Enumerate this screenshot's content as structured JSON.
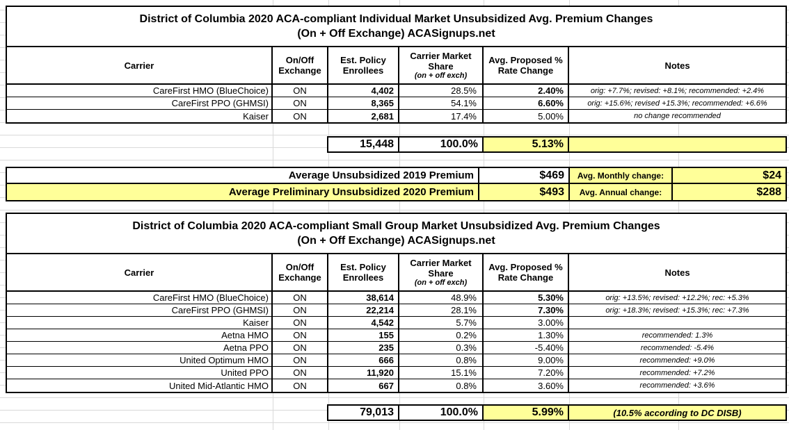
{
  "colors": {
    "highlight_yellow": "#ffff99",
    "border_black": "#000000",
    "grid_gray": "#d9d9d9"
  },
  "individual_table": {
    "title_line1": "District of Columbia 2020 ACA-compliant Individual Market Unsubsidized Avg. Premium Changes",
    "title_line2": "(On + Off Exchange) ACASignups.net",
    "headers": {
      "carrier": "Carrier",
      "exchange": "On/Off Exchange",
      "enrollees": "Est. Policy Enrollees",
      "share": "Carrier Market Share",
      "share_sub": "(on + off exch)",
      "rate": "Avg. Proposed % Rate Change",
      "notes": "Notes"
    },
    "rows": [
      {
        "carrier": "CareFirst HMO (BlueChoice)",
        "exchange": "ON",
        "enrollees": "4,402",
        "share": "28.5%",
        "rate": "2.40%",
        "rate_bold": true,
        "note": "orig: +7.7%; revised: +8.1%; recommended: +2.4%"
      },
      {
        "carrier": "CareFirst PPO (GHMSI)",
        "exchange": "ON",
        "enrollees": "8,365",
        "share": "54.1%",
        "rate": "6.60%",
        "rate_bold": true,
        "note": "orig: +15.6%; revised +15.3%; recommended: +6.6%"
      },
      {
        "carrier": "Kaiser",
        "exchange": "ON",
        "enrollees": "2,681",
        "share": "17.4%",
        "rate": "5.00%",
        "rate_bold": false,
        "note": "no change recommended"
      }
    ],
    "totals": {
      "enrollees": "15,448",
      "share": "100.0%",
      "rate": "5.13%",
      "note": ""
    }
  },
  "summary": {
    "rows": [
      {
        "label": "Average Unsubsidized 2019 Premium",
        "value": "$469",
        "change_label": "Avg. Monthly change:",
        "change_value": "$24",
        "highlight": false
      },
      {
        "label": "Average Preliminary Unsubsidized 2020 Premium",
        "value": "$493",
        "change_label": "Avg. Annual change:",
        "change_value": "$288",
        "highlight": true
      }
    ]
  },
  "small_group_table": {
    "title_line1": "District of Columbia 2020 ACA-compliant Small Group Market Unsubsidized Avg. Premium Changes",
    "title_line2": "(On + Off Exchange) ACASignups.net",
    "headers": {
      "carrier": "Carrier",
      "exchange": "On/Off Exchange",
      "enrollees": "Est. Policy Enrollees",
      "share": "Carrier Market Share",
      "share_sub": "(on + off exch)",
      "rate": "Avg. Proposed % Rate Change",
      "notes": "Notes"
    },
    "rows": [
      {
        "carrier": "CareFirst HMO (BlueChoice)",
        "exchange": "ON",
        "enrollees": "38,614",
        "share": "48.9%",
        "rate": "5.30%",
        "rate_bold": true,
        "note": "orig: +13.5%; revised: +12.2%; rec: +5.3%"
      },
      {
        "carrier": "CareFirst PPO (GHMSI)",
        "exchange": "ON",
        "enrollees": "22,214",
        "share": "28.1%",
        "rate": "7.30%",
        "rate_bold": true,
        "note": "orig: +18.3%; revised: +15.3%; rec: +7.3%"
      },
      {
        "carrier": "Kaiser",
        "exchange": "ON",
        "enrollees": "4,542",
        "share": "5.7%",
        "rate": "3.00%",
        "rate_bold": false,
        "note": ""
      },
      {
        "carrier": "Aetna HMO",
        "exchange": "ON",
        "enrollees": "155",
        "share": "0.2%",
        "rate": "1.30%",
        "rate_bold": false,
        "note": "recommended: 1.3%"
      },
      {
        "carrier": "Aetna PPO",
        "exchange": "ON",
        "enrollees": "235",
        "share": "0.3%",
        "rate": "-5.40%",
        "rate_bold": false,
        "note": "recommended: -5.4%"
      },
      {
        "carrier": "United Optimum HMO",
        "exchange": "ON",
        "enrollees": "666",
        "share": "0.8%",
        "rate": "9.00%",
        "rate_bold": false,
        "note": "recommended: +9.0%"
      },
      {
        "carrier": "United PPO",
        "exchange": "ON",
        "enrollees": "11,920",
        "share": "15.1%",
        "rate": "7.20%",
        "rate_bold": false,
        "note": "recommended: +7.2%"
      },
      {
        "carrier": "United Mid-Atlantic HMO",
        "exchange": "ON",
        "enrollees": "667",
        "share": "0.8%",
        "rate": "3.60%",
        "rate_bold": false,
        "note": "recommended: +3.6%"
      }
    ],
    "totals": {
      "enrollees": "79,013",
      "share": "100.0%",
      "rate": "5.99%",
      "note": "(10.5% according to DC DISB)"
    }
  }
}
